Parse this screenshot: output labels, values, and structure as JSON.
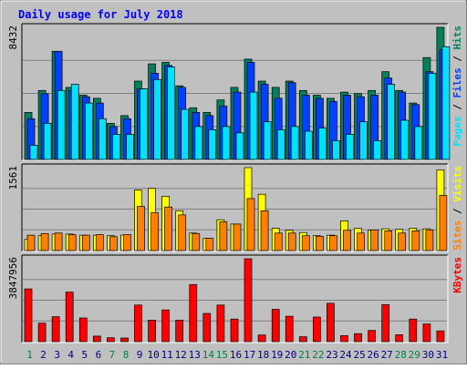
{
  "chart_data": {
    "type": "bar",
    "title": "Daily usage for July 2018",
    "categories": [
      "1",
      "2",
      "3",
      "4",
      "5",
      "6",
      "7",
      "8",
      "9",
      "10",
      "11",
      "12",
      "13",
      "14",
      "15",
      "16",
      "17",
      "18",
      "19",
      "20",
      "21",
      "22",
      "23",
      "24",
      "25",
      "26",
      "27",
      "28",
      "29",
      "30",
      "31"
    ],
    "weekend_days": [
      "1",
      "7",
      "8",
      "14",
      "15",
      "21",
      "22",
      "28",
      "29"
    ],
    "colors": {
      "title": "#0000ff",
      "background": "#c0c0c0",
      "frame": "#ffffff",
      "grid": "#808080",
      "day_weekday": "#000080",
      "day_weekend": "#008040",
      "hits": "#00805c",
      "files": "#0040ff",
      "pages": "#00e0ff",
      "visits": "#ffff00",
      "sites": "#ff8000",
      "kbytes": "#ff0000"
    },
    "panels": [
      {
        "id": "hits-files-pages",
        "max_label": "8432",
        "ylim": [
          0,
          8432
        ],
        "side_label": [
          {
            "text": "Pages",
            "color": "#00e0ff"
          },
          {
            "text": " / ",
            "color": "#000000"
          },
          {
            "text": "Files",
            "color": "#0040ff"
          },
          {
            "text": " / ",
            "color": "#000000"
          },
          {
            "text": "Hits",
            "color": "#00805c"
          }
        ],
        "series": [
          {
            "name": "Hits",
            "color": "#00805c",
            "values": [
              3000,
              4400,
              6900,
              4600,
              4100,
              3900,
              2300,
              2800,
              5000,
              6100,
              6200,
              4700,
              3300,
              3000,
              3800,
              4600,
              6400,
              5000,
              4600,
              5000,
              4400,
              4100,
              3900,
              4300,
              4200,
              4400,
              5600,
              4400,
              3600,
              6500,
              8432
            ]
          },
          {
            "text_note": "",
            "name": "Files",
            "color": "#0040ff",
            "values": [
              2600,
              4200,
              6900,
              4400,
              4000,
              3600,
              2100,
              2600,
              4500,
              5500,
              6000,
              4600,
              3000,
              2800,
              3400,
              4300,
              6200,
              4800,
              3900,
              4900,
              4100,
              3900,
              3700,
              4100,
              4000,
              4100,
              5200,
              4300,
              3500,
              5600,
              7000
            ]
          },
          {
            "name": "Pages",
            "color": "#00e0ff",
            "values": [
              900,
              2300,
              4400,
              4800,
              3600,
              2600,
              1600,
              1600,
              4500,
              5100,
              5900,
              3200,
              2100,
              1900,
              2100,
              1700,
              4300,
              2400,
              1900,
              2100,
              1800,
              2000,
              1200,
              1600,
              2400,
              1200,
              4800,
              2500,
              2100,
              5500,
              7200
            ]
          }
        ]
      },
      {
        "id": "visits-sites",
        "max_label": "1561",
        "ylim": [
          0,
          1561
        ],
        "side_label": [
          {
            "text": "Sites",
            "color": "#ff8000"
          },
          {
            "text": " / ",
            "color": "#000000"
          },
          {
            "text": "Visits",
            "color": "#ffff00"
          }
        ],
        "series": [
          {
            "name": "Visits",
            "color": "#ffff00",
            "values": [
              210,
              280,
              310,
              310,
              290,
              290,
              280,
              290,
              1140,
              1170,
              1020,
              750,
              330,
              230,
              580,
              500,
              1561,
              1060,
              420,
              380,
              340,
              280,
              290,
              560,
              420,
              380,
              410,
              400,
              420,
              410,
              1520
            ]
          },
          {
            "name": "Sites",
            "color": "#ff8000",
            "values": [
              290,
              320,
              330,
              300,
              290,
              300,
              260,
              300,
              830,
              710,
              820,
              670,
              320,
              230,
              540,
              500,
              980,
              750,
              330,
              330,
              280,
              270,
              280,
              380,
              330,
              390,
              370,
              330,
              370,
              390,
              1040
            ]
          }
        ]
      },
      {
        "id": "kbytes",
        "max_label": "3847956",
        "ylim": [
          0,
          3847956
        ],
        "side_label": [
          {
            "text": "KBytes",
            "color": "#ff0000"
          }
        ],
        "series": [
          {
            "name": "KBytes",
            "color": "#ff0000",
            "values": [
              2450000,
              860000,
              1160000,
              2300000,
              1100000,
              260000,
              180000,
              170000,
              1700000,
              1000000,
              1470000,
              1000000,
              2650000,
              1310000,
              1700000,
              1050000,
              3847956,
              310000,
              1500000,
              1180000,
              230000,
              1140000,
              1780000,
              280000,
              370000,
              520000,
              1720000,
              320000,
              1050000,
              820000,
              500000
            ]
          }
        ]
      }
    ]
  }
}
